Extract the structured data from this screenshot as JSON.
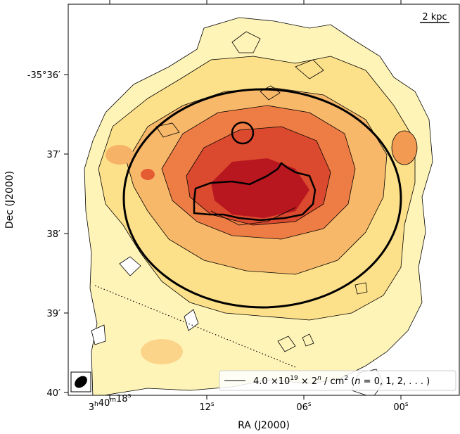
{
  "chart_data": {
    "type": "heatmap",
    "colormap": "YlOrRd",
    "colors": {
      "low": "#fff8c0",
      "mid": "#f29a52",
      "high": "#b0141e",
      "contour": "#000000"
    },
    "scale_bar_label": "2 kpc",
    "x_axis": {
      "label": "RA (J2000)",
      "ticks": [
        {
          "h": "3",
          "m": "40",
          "s": "18",
          "value_s": 18
        },
        {
          "h": "",
          "m": "",
          "s": "12",
          "value_s": 12
        },
        {
          "h": "",
          "m": "",
          "s": "06",
          "value_s": 6
        },
        {
          "h": "",
          "m": "",
          "s": "00",
          "value_s": 0
        }
      ],
      "unit_h": "h",
      "unit_m": "m",
      "unit_s": "s"
    },
    "y_axis": {
      "label": "Dec (J2000)",
      "tick_labels": [
        "-35°36′",
        "37′",
        "38′",
        "39′",
        "40′"
      ],
      "tick_values_arcmin": [
        -36,
        -37,
        -38,
        -39,
        -40
      ]
    },
    "legend": {
      "location": "lower-right",
      "entry": {
        "coef": "4.0",
        "base": "×10",
        "exp": "19",
        "mid": " × 2",
        "exp2": "n",
        "unit": " / cm",
        "unit_exp": "2",
        "condition_a": " (",
        "condition_var": "n",
        "condition_b": " = 0, 1, 2, . . . )"
      }
    },
    "contour_levels_cm2": [
      4e+19,
      8e+19,
      1.6e+20,
      3.2e+20,
      6.4e+20,
      1.28e+21
    ],
    "beam": "ellipse lower-left",
    "overlays": [
      "large ellipse",
      "small circle",
      "central region outline",
      "dotted line"
    ]
  }
}
